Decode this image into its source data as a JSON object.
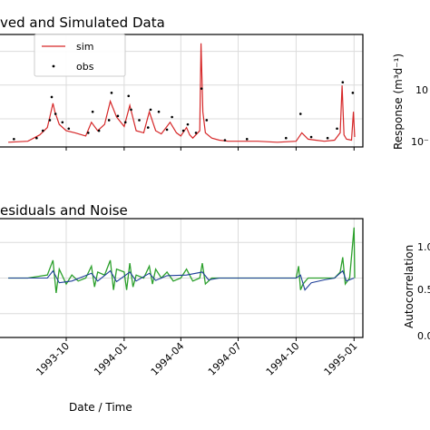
{
  "chart_data": [
    {
      "type": "line",
      "title": "ved and Simulated Data",
      "xlabel": "",
      "ylabel": "",
      "x_start": "1993-07-01",
      "xlim": [
        "1993-06-15",
        "1995-01-15"
      ],
      "ylim": [
        0,
        1.0
      ],
      "grid": true,
      "legend": {
        "placement": "top-left",
        "entries": [
          "sim",
          "obs"
        ]
      },
      "series": [
        {
          "name": "sim",
          "color": "#d62728",
          "style": "line",
          "x": [
            "1993-07-01",
            "1993-08-01",
            "1993-08-20",
            "1993-09-01",
            "1993-09-10",
            "1993-09-13",
            "1993-09-20",
            "1993-10-01",
            "1993-10-15",
            "1993-11-01",
            "1993-11-10",
            "1993-11-20",
            "1993-12-01",
            "1993-12-10",
            "1993-12-20",
            "1994-01-01",
            "1994-01-10",
            "1994-01-20",
            "1994-02-01",
            "1994-02-10",
            "1994-02-20",
            "1994-03-01",
            "1994-03-15",
            "1994-03-25",
            "1994-04-01",
            "1994-04-10",
            "1994-04-15",
            "1994-04-20",
            "1994-05-01",
            "1994-05-03",
            "1994-05-06",
            "1994-05-10",
            "1994-05-20",
            "1994-06-01",
            "1994-06-15",
            "1994-07-01",
            "1994-08-01",
            "1994-09-01",
            "1994-10-01",
            "1994-10-10",
            "1994-10-20",
            "1994-11-01",
            "1994-11-15",
            "1994-12-01",
            "1994-12-10",
            "1994-12-13",
            "1994-12-16",
            "1994-12-20",
            "1994-12-28",
            "1994-12-31",
            "1995-01-02"
          ],
          "values": [
            0.01,
            0.02,
            0.08,
            0.15,
            0.38,
            0.3,
            0.18,
            0.12,
            0.1,
            0.07,
            0.2,
            0.12,
            0.18,
            0.4,
            0.25,
            0.16,
            0.36,
            0.12,
            0.1,
            0.3,
            0.12,
            0.09,
            0.2,
            0.1,
            0.07,
            0.15,
            0.08,
            0.05,
            0.12,
            0.95,
            0.3,
            0.1,
            0.05,
            0.03,
            0.02,
            0.02,
            0.02,
            0.01,
            0.02,
            0.1,
            0.04,
            0.03,
            0.02,
            0.03,
            0.1,
            0.55,
            0.08,
            0.04,
            0.03,
            0.3,
            0.06
          ]
        },
        {
          "name": "obs",
          "color": "#000000",
          "style": "markers",
          "x": [
            "1993-07-10",
            "1993-08-15",
            "1993-08-25",
            "1993-09-05",
            "1993-09-08",
            "1993-09-14",
            "1993-09-25",
            "1993-10-05",
            "1993-11-05",
            "1993-11-12",
            "1993-11-22",
            "1993-12-08",
            "1993-12-12",
            "1993-12-22",
            "1994-01-03",
            "1994-01-08",
            "1994-01-12",
            "1994-01-25",
            "1994-02-08",
            "1994-02-12",
            "1994-02-25",
            "1994-03-10",
            "1994-03-18",
            "1994-04-05",
            "1994-04-12",
            "1994-04-25",
            "1994-05-04",
            "1994-05-12",
            "1994-06-10",
            "1994-07-15",
            "1994-09-15",
            "1994-10-08",
            "1994-10-25",
            "1994-11-20",
            "1994-12-05",
            "1994-12-14",
            "1994-12-30"
          ],
          "values": [
            0.04,
            0.05,
            0.12,
            0.22,
            0.44,
            0.28,
            0.2,
            0.14,
            0.1,
            0.3,
            0.12,
            0.22,
            0.48,
            0.26,
            0.2,
            0.45,
            0.32,
            0.22,
            0.15,
            0.32,
            0.3,
            0.13,
            0.25,
            0.12,
            0.18,
            0.1,
            0.52,
            0.22,
            0.03,
            0.04,
            0.05,
            0.28,
            0.06,
            0.05,
            0.14,
            0.58,
            0.48
          ]
        }
      ]
    },
    {
      "type": "line",
      "title": "esiduals and Noise",
      "xlabel": "Date / Time",
      "ylabel": "",
      "xlim": [
        "1993-06-15",
        "1995-01-15"
      ],
      "ylim": [
        -1.0,
        1.0
      ],
      "grid": true,
      "x_ticks": [
        "1993-10",
        "1994-01",
        "1994-04",
        "1994-07",
        "1994-10",
        "1995-01"
      ],
      "series": [
        {
          "name": "",
          "color": "#2ca02c",
          "style": "line",
          "x": [
            "1993-07-01",
            "1993-08-01",
            "1993-09-01",
            "1993-09-10",
            "1993-09-15",
            "1993-09-20",
            "1993-10-01",
            "1993-10-10",
            "1993-10-20",
            "1993-11-01",
            "1993-11-10",
            "1993-11-15",
            "1993-11-20",
            "1993-12-01",
            "1993-12-10",
            "1993-12-15",
            "1993-12-20",
            "1994-01-01",
            "1994-01-05",
            "1994-01-10",
            "1994-01-15",
            "1994-01-20",
            "1994-02-01",
            "1994-02-10",
            "1994-02-15",
            "1994-02-20",
            "1994-03-01",
            "1994-03-10",
            "1994-03-20",
            "1994-04-01",
            "1994-04-10",
            "1994-04-20",
            "1994-05-01",
            "1994-05-05",
            "1994-05-10",
            "1994-05-20",
            "1994-06-01",
            "1994-07-01",
            "1994-08-01",
            "1994-09-01",
            "1994-10-01",
            "1994-10-05",
            "1994-10-08",
            "1994-10-12",
            "1994-10-20",
            "1994-11-01",
            "1994-12-01",
            "1994-12-10",
            "1994-12-14",
            "1994-12-18",
            "1994-12-25",
            "1995-01-01",
            "1995-01-02"
          ],
          "values": [
            0.0,
            0.0,
            0.05,
            0.3,
            -0.25,
            0.15,
            -0.1,
            0.05,
            -0.05,
            0.0,
            0.2,
            -0.15,
            0.1,
            0.05,
            0.3,
            -0.2,
            0.15,
            0.1,
            -0.2,
            0.25,
            -0.15,
            0.05,
            0.0,
            0.2,
            -0.1,
            0.15,
            0.0,
            0.1,
            -0.05,
            0.0,
            0.15,
            -0.05,
            0.0,
            0.25,
            -0.1,
            0.0,
            0.0,
            0.0,
            0.0,
            0.0,
            0.0,
            0.2,
            -0.2,
            -0.1,
            0.0,
            0.0,
            0.0,
            0.1,
            0.35,
            -0.1,
            0.0,
            0.85,
            0.0
          ]
        },
        {
          "name": "",
          "color": "#1f3f99",
          "style": "line",
          "x": [
            "1993-07-01",
            "1993-09-01",
            "1993-09-10",
            "1993-09-20",
            "1993-10-10",
            "1993-11-10",
            "1993-11-20",
            "1993-12-10",
            "1993-12-20",
            "1994-01-10",
            "1994-01-20",
            "1994-02-10",
            "1994-02-20",
            "1994-03-10",
            "1994-04-10",
            "1994-05-05",
            "1994-05-15",
            "1994-06-01",
            "1994-08-01",
            "1994-10-01",
            "1994-10-08",
            "1994-10-15",
            "1994-10-25",
            "1994-11-15",
            "1994-12-01",
            "1994-12-14",
            "1994-12-20",
            "1995-01-01"
          ],
          "values": [
            0.0,
            0.0,
            0.12,
            -0.08,
            -0.05,
            0.08,
            -0.05,
            0.12,
            -0.06,
            0.1,
            -0.05,
            0.08,
            -0.04,
            0.04,
            0.05,
            0.1,
            -0.03,
            0.0,
            0.0,
            0.0,
            0.05,
            -0.2,
            -0.08,
            -0.03,
            0.0,
            0.12,
            -0.05,
            0.0
          ]
        }
      ]
    },
    {
      "type": "line",
      "title": "",
      "ylabel": "Response (m³d⁻¹)",
      "y_ticks": [
        "10",
        "10⁻"
      ]
    },
    {
      "type": "line",
      "title": "",
      "ylabel": "Autocorrelation",
      "y_ticks": [
        "1.0",
        "0.5",
        "0.0"
      ]
    }
  ]
}
